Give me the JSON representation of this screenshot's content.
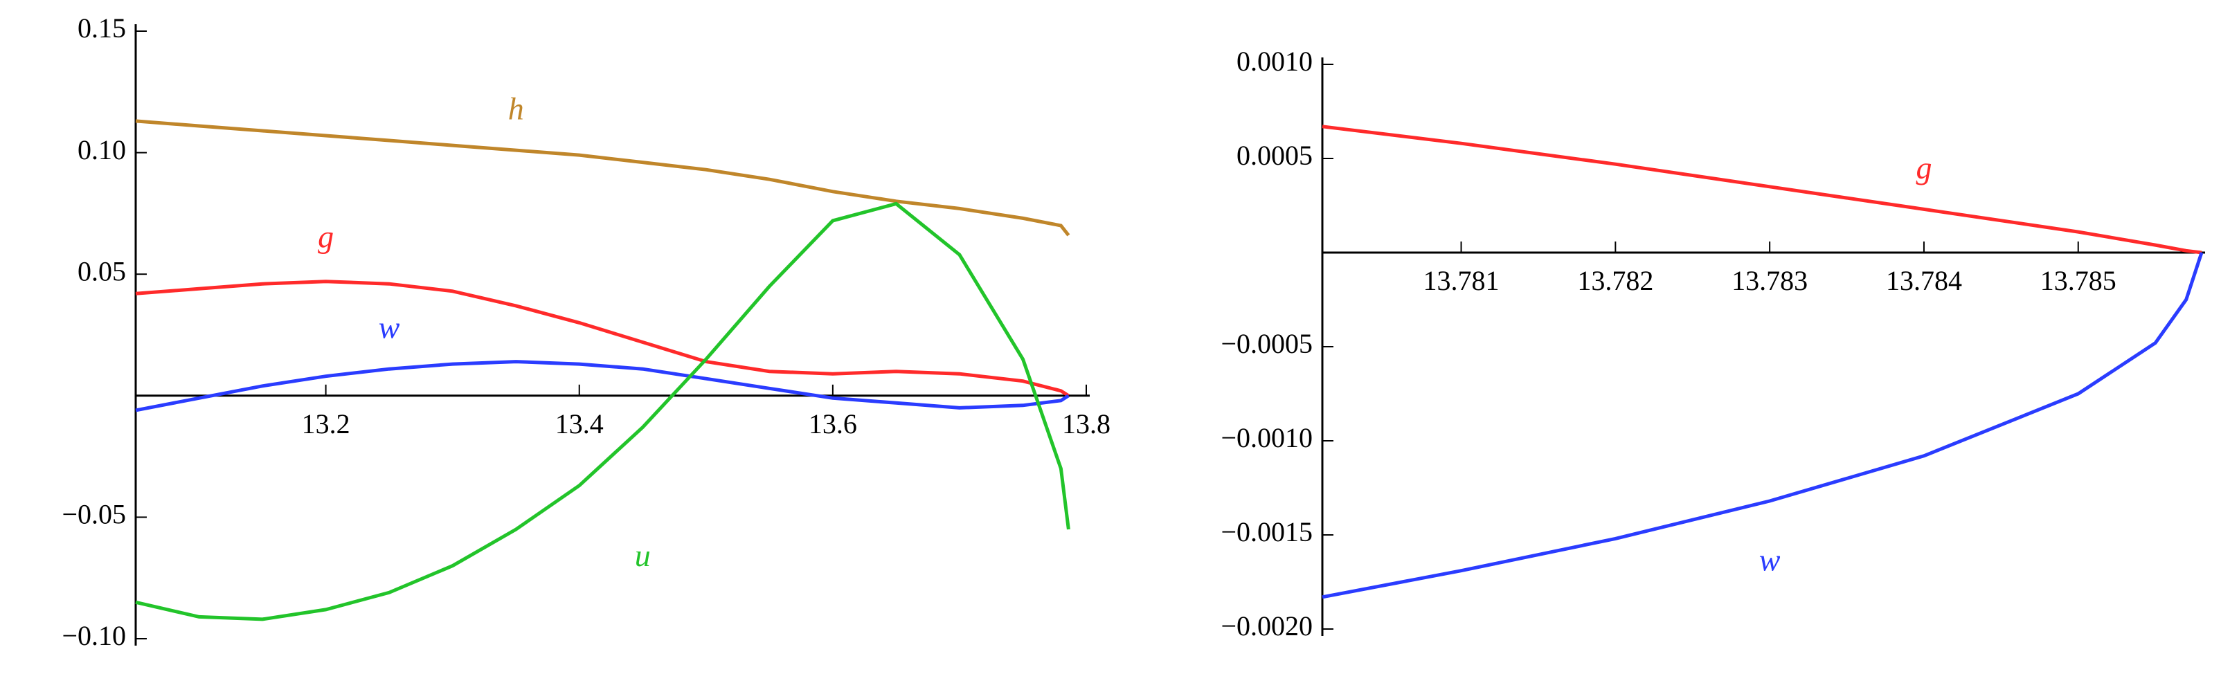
{
  "chart_data": [
    {
      "type": "line",
      "x": [
        13.05,
        13.1,
        13.15,
        13.2,
        13.25,
        13.3,
        13.35,
        13.4,
        13.45,
        13.5,
        13.55,
        13.6,
        13.65,
        13.7,
        13.75,
        13.78,
        13.786
      ],
      "series": [
        {
          "name": "h",
          "color": "#c0862a",
          "values": [
            0.113,
            0.111,
            0.109,
            0.107,
            0.105,
            0.103,
            0.101,
            0.099,
            0.096,
            0.093,
            0.089,
            0.084,
            0.08,
            0.077,
            0.073,
            0.07,
            0.066
          ]
        },
        {
          "name": "g",
          "color": "#ff2a2a",
          "values": [
            0.042,
            0.044,
            0.046,
            0.047,
            0.046,
            0.043,
            0.037,
            0.03,
            0.022,
            0.014,
            0.01,
            0.009,
            0.01,
            0.009,
            0.006,
            0.002,
            0
          ]
        },
        {
          "name": "w",
          "color": "#2a3cff",
          "values": [
            -0.006,
            -0.001,
            0.004,
            0.008,
            0.011,
            0.013,
            0.014,
            0.013,
            0.011,
            0.007,
            0.003,
            -0.001,
            -0.003,
            -0.005,
            -0.004,
            -0.002,
            0
          ]
        },
        {
          "name": "u",
          "color": "#22c42a",
          "values": [
            -0.085,
            -0.091,
            -0.092,
            -0.088,
            -0.081,
            -0.07,
            -0.055,
            -0.037,
            -0.013,
            0.015,
            0.045,
            0.072,
            0.079,
            0.058,
            0.015,
            -0.03,
            -0.055
          ]
        }
      ],
      "xlim": [
        13.05,
        13.8
      ],
      "ylim": [
        -0.1,
        0.15
      ],
      "xticks": [
        13.2,
        13.4,
        13.6,
        13.8
      ],
      "yticks": [
        {
          "value": -0.1,
          "label": "−0.10"
        },
        {
          "value": -0.05,
          "label": "−0.05"
        },
        0.05,
        {
          "value": 0.1,
          "label": "0.10"
        },
        0.15
      ]
    },
    {
      "type": "line",
      "x": [
        13.7801,
        13.781,
        13.782,
        13.783,
        13.784,
        13.785,
        13.7855,
        13.7857,
        13.7858
      ],
      "series": [
        {
          "name": "g",
          "color": "#ff2a2a",
          "values": [
            0.00067,
            0.00058,
            0.00047,
            0.00035,
            0.00023,
            0.00011,
            4e-05,
            1e-05,
            0
          ]
        },
        {
          "name": "w",
          "color": "#2a3cff",
          "values": [
            -0.00183,
            -0.00169,
            -0.00152,
            -0.00132,
            -0.00108,
            -0.00075,
            -0.00048,
            -0.00025,
            0
          ]
        }
      ],
      "xlim": [
        13.7801,
        13.7858
      ],
      "ylim": [
        -0.002,
        0.001
      ],
      "xticks": [
        13.781,
        13.782,
        13.783,
        13.784,
        13.785
      ],
      "yticks": [
        {
          "value": -0.002,
          "label": "−0.0020"
        },
        {
          "value": -0.0015,
          "label": "−0.0015"
        },
        {
          "value": -0.001,
          "label": "−0.0010"
        },
        {
          "value": -0.0005,
          "label": "−0.0005"
        },
        0.0005,
        {
          "value": 0.001,
          "label": "0.0010"
        }
      ]
    }
  ]
}
